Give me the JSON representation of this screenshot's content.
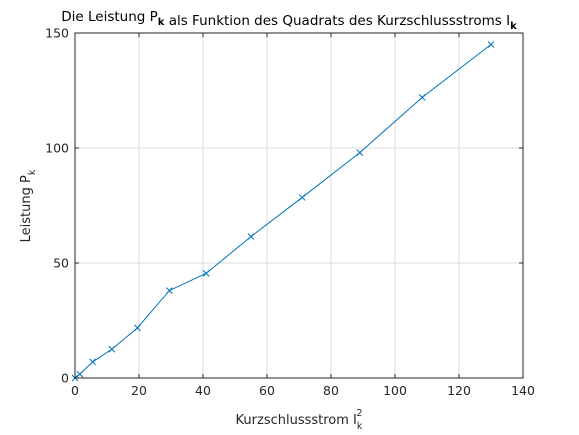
{
  "chart_data": {
    "type": "line",
    "title": "Die Leistung P_k als Funktion des Quadrats des Kurzschlussstroms I_k",
    "title_parts": [
      {
        "text": "Die Leistung P",
        "sub": ""
      },
      {
        "text": "",
        "sub": "k"
      },
      {
        "text": " als Funktion des Quadrats des Kurzschlussstroms I",
        "sub": ""
      },
      {
        "text": "",
        "sub": "k"
      }
    ],
    "xlabel": "Kurzschlussstrom I_k^2",
    "xlabel_parts": {
      "base": "Kurzschlussstrom I",
      "sub": "k",
      "sup": "2"
    },
    "ylabel": "Leistung P_k",
    "ylabel_parts": {
      "base": "Leistung P",
      "sub": "k"
    },
    "xlim": [
      0,
      140
    ],
    "ylim": [
      0,
      150
    ],
    "xticks": [
      0,
      20,
      40,
      60,
      80,
      100,
      120,
      140
    ],
    "yticks": [
      0,
      50,
      100,
      150
    ],
    "grid": true,
    "legend": "none",
    "marker": "x",
    "series": [
      {
        "color": "#0072bd",
        "points": [
          {
            "x": 0,
            "y": 0
          },
          {
            "x": 1.5,
            "y": 1.7
          },
          {
            "x": 5.5,
            "y": 7.0
          },
          {
            "x": 11.5,
            "y": 12.5
          },
          {
            "x": 19.5,
            "y": 21.8
          },
          {
            "x": 29.5,
            "y": 38.0
          },
          {
            "x": 41,
            "y": 45.5
          },
          {
            "x": 55,
            "y": 61.5
          },
          {
            "x": 71,
            "y": 78.5
          },
          {
            "x": 89,
            "y": 98.0
          },
          {
            "x": 108.5,
            "y": 122.0
          },
          {
            "x": 130,
            "y": 145.0
          }
        ]
      }
    ]
  }
}
